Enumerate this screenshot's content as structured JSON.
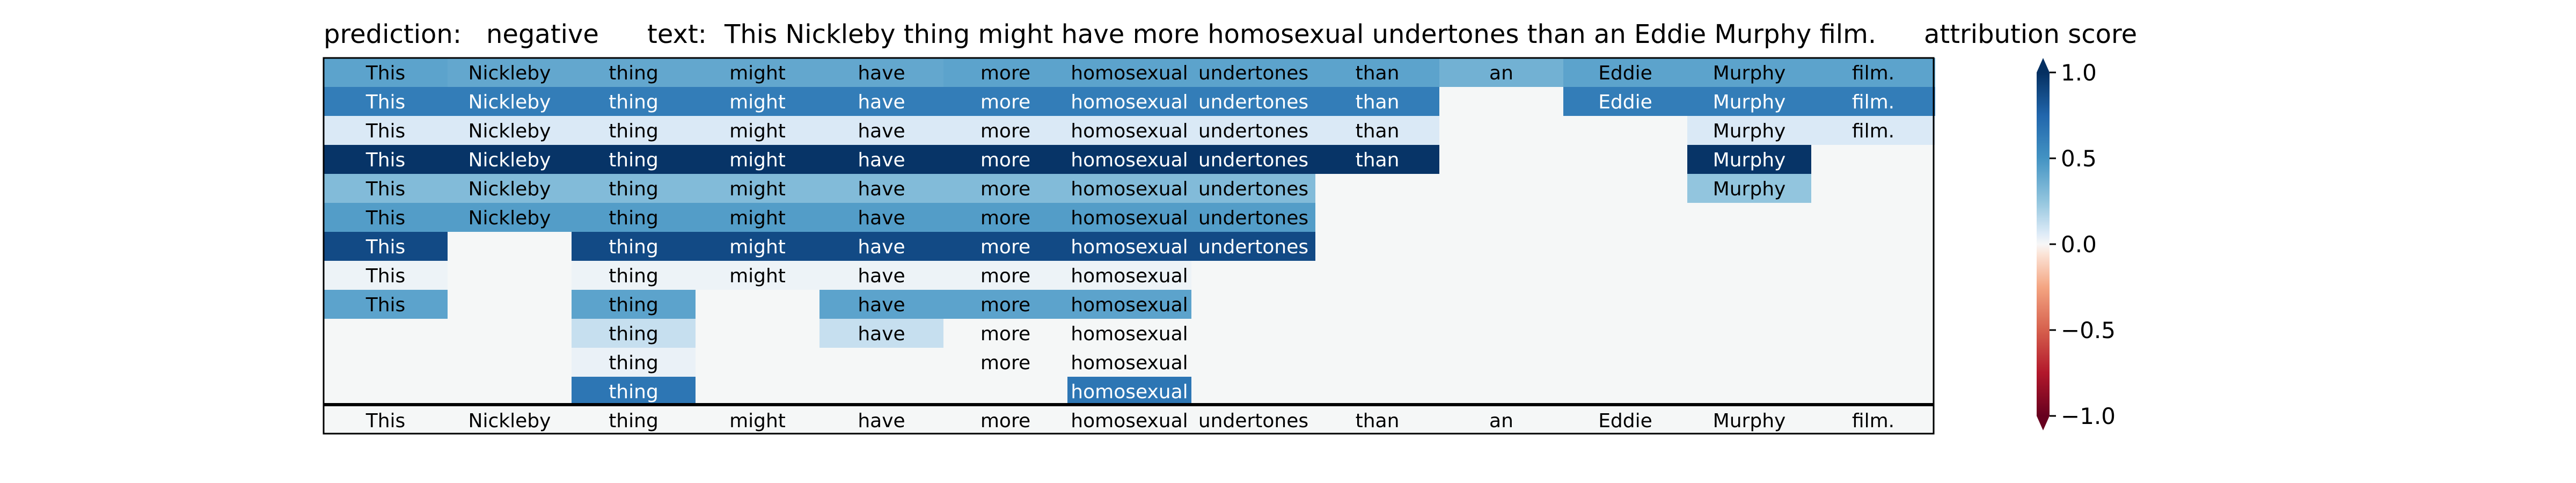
{
  "header": {
    "prediction_label": "prediction:",
    "prediction_value": "negative",
    "text_label": "text:",
    "text_value": "This Nickleby thing might have more homosexual undertones than an Eddie Murphy film."
  },
  "colorbar": {
    "title": "attribution score",
    "ticks": [
      "1.0",
      "0.5",
      "0.0",
      "−0.5",
      "−1.0"
    ],
    "tick_values": [
      1.0,
      0.5,
      0.0,
      -0.5,
      -1.0
    ],
    "range": [
      -1.0,
      1.0
    ],
    "colormap": "RdBu"
  },
  "chart_data": {
    "type": "heatmap",
    "tokens": [
      "This",
      "Nickleby",
      "thing",
      "might",
      "have",
      "more",
      "homosexual",
      "undertones",
      "than",
      "an",
      "Eddie",
      "Murphy",
      "film."
    ],
    "rows": [
      [
        0.42,
        0.4,
        0.4,
        0.4,
        0.4,
        0.42,
        0.42,
        0.42,
        0.42,
        0.35,
        0.42,
        0.42,
        0.42
      ],
      [
        0.62,
        0.62,
        0.62,
        0.62,
        0.62,
        0.62,
        0.62,
        0.62,
        0.62,
        null,
        0.62,
        0.62,
        0.62
      ],
      [
        0.07,
        0.07,
        0.07,
        0.07,
        0.07,
        0.07,
        0.07,
        0.07,
        0.07,
        null,
        null,
        0.07,
        0.07
      ],
      [
        0.98,
        0.98,
        0.98,
        0.98,
        0.98,
        0.98,
        0.98,
        0.98,
        0.98,
        null,
        null,
        0.98,
        null
      ],
      [
        0.3,
        0.3,
        0.3,
        0.3,
        0.3,
        0.3,
        0.3,
        0.3,
        null,
        null,
        null,
        0.25,
        null
      ],
      [
        0.45,
        0.45,
        0.45,
        0.45,
        0.45,
        0.45,
        0.45,
        0.45,
        null,
        null,
        null,
        null,
        null
      ],
      [
        0.88,
        null,
        0.88,
        0.88,
        0.88,
        0.88,
        0.88,
        0.88,
        null,
        null,
        null,
        null,
        null
      ],
      [
        0.02,
        null,
        0.02,
        0.02,
        0.02,
        0.02,
        0.02,
        null,
        null,
        null,
        null,
        null,
        null
      ],
      [
        0.42,
        null,
        0.42,
        null,
        0.42,
        0.42,
        0.42,
        null,
        null,
        null,
        null,
        null,
        null
      ],
      [
        null,
        null,
        0.12,
        null,
        0.12,
        0.0,
        0.0,
        null,
        null,
        null,
        null,
        null,
        null
      ],
      [
        null,
        null,
        0.03,
        null,
        null,
        0.0,
        0.0,
        null,
        null,
        null,
        null,
        null,
        null
      ],
      [
        null,
        null,
        0.66,
        null,
        null,
        null,
        0.66,
        null,
        null,
        null,
        null,
        null,
        null
      ]
    ],
    "empty_value": 0.0,
    "bottom_row": [
      "This",
      "Nickleby",
      "thing",
      "might",
      "have",
      "more",
      "homosexual",
      "undertones",
      "than",
      "an",
      "Eddie",
      "Murphy",
      "film."
    ]
  }
}
